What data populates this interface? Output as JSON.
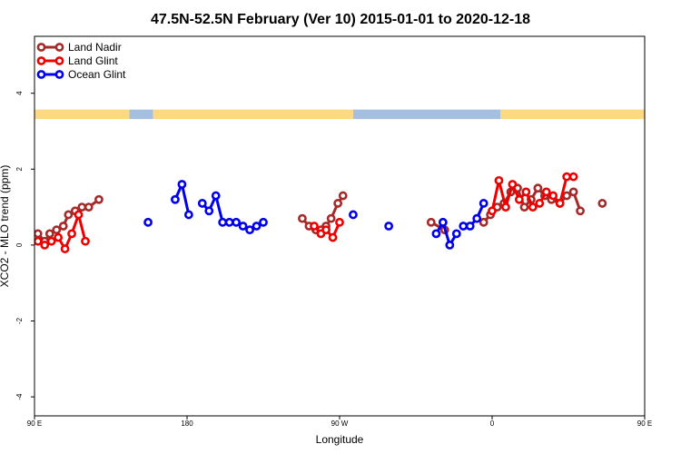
{
  "chart_data": {
    "type": "line",
    "title": "47.5N-52.5N February (Ver 10)   2015-01-01 to 2020-12-18",
    "xlabel": "Longitude",
    "ylabel": "XCO2 - MLO trend (ppm)",
    "xlim": [
      90,
      450
    ],
    "ylim": [
      -4.5,
      5.5
    ],
    "x_ticks": [
      {
        "value": 90,
        "label": "90 E"
      },
      {
        "value": 180,
        "label": "180"
      },
      {
        "value": 270,
        "label": "90 W"
      },
      {
        "value": 360,
        "label": "0"
      },
      {
        "value": 450,
        "label": "90 E"
      },
      {
        "value": 540,
        "label": "180"
      }
    ],
    "y_ticks": [
      {
        "value": -4,
        "label": "-4"
      },
      {
        "value": -2,
        "label": "-2"
      },
      {
        "value": 0,
        "label": "0"
      },
      {
        "value": 2,
        "label": "2"
      },
      {
        "value": 4,
        "label": "4"
      }
    ],
    "grid": false,
    "legend_position": "top-left",
    "land_ocean_bar": {
      "y_range": [
        3.32,
        3.57
      ],
      "land_color": "#FFD97F",
      "ocean_color": "#A5BFE0",
      "segments": [
        {
          "type": "land",
          "from": 90,
          "to": 146
        },
        {
          "type": "ocean",
          "from": 146,
          "to": 160
        },
        {
          "type": "land",
          "from": 160,
          "to": 278
        },
        {
          "type": "ocean",
          "from": 278,
          "to": 365
        },
        {
          "type": "land",
          "from": 365,
          "to": 505
        },
        {
          "type": "ocean",
          "from": 505,
          "to": 540
        }
      ]
    },
    "series": [
      {
        "name": "Land Nadir",
        "color": "#A52A2A",
        "segments": [
          [
            [
              92,
              0.3
            ],
            [
              96,
              0.1
            ],
            [
              99,
              0.3
            ],
            [
              103,
              0.4
            ],
            [
              107,
              0.5
            ],
            [
              110,
              0.8
            ],
            [
              114,
              0.9
            ],
            [
              118,
              1.0
            ],
            [
              122,
              1.0
            ],
            [
              128,
              1.2
            ]
          ],
          [
            [
              248,
              0.7
            ],
            [
              252,
              0.5
            ],
            [
              256,
              0.4
            ],
            [
              259,
              0.4
            ],
            [
              262,
              0.5
            ],
            [
              265,
              0.7
            ],
            [
              269,
              1.1
            ],
            [
              272,
              1.3
            ]
          ],
          [
            [
              324,
              0.6
            ],
            [
              332,
              0.4
            ]
          ],
          [
            [
              355,
              0.6
            ],
            [
              359,
              0.8
            ],
            [
              363,
              1.0
            ],
            [
              367,
              1.1
            ],
            [
              371,
              1.4
            ],
            [
              375,
              1.5
            ],
            [
              379,
              1.0
            ],
            [
              383,
              1.2
            ],
            [
              387,
              1.5
            ],
            [
              391,
              1.3
            ],
            [
              395,
              1.2
            ],
            [
              400,
              1.1
            ],
            [
              404,
              1.3
            ],
            [
              408,
              1.4
            ],
            [
              412,
              0.9
            ]
          ],
          [
            [
              425,
              1.1
            ]
          ]
        ]
      },
      {
        "name": "Land Glint",
        "color": "#EE0000",
        "segments": [
          [
            [
              92,
              0.1
            ],
            [
              96,
              0.0
            ],
            [
              100,
              0.1
            ],
            [
              104,
              0.2
            ],
            [
              108,
              -0.1
            ],
            [
              112,
              0.3
            ],
            [
              116,
              0.8
            ],
            [
              120,
              0.1
            ]
          ],
          [
            [
              255,
              0.5
            ],
            [
              259,
              0.3
            ],
            [
              262,
              0.4
            ],
            [
              266,
              0.2
            ],
            [
              270,
              0.6
            ]
          ],
          [
            [
              360,
              0.9
            ],
            [
              364,
              1.7
            ],
            [
              368,
              1.0
            ],
            [
              372,
              1.6
            ],
            [
              376,
              1.2
            ],
            [
              380,
              1.4
            ],
            [
              384,
              1.0
            ],
            [
              388,
              1.1
            ],
            [
              392,
              1.4
            ],
            [
              396,
              1.3
            ],
            [
              400,
              1.1
            ],
            [
              404,
              1.8
            ],
            [
              408,
              1.8
            ]
          ]
        ]
      },
      {
        "name": "Ocean Glint",
        "color": "#0000EE",
        "segments": [
          [
            [
              157,
              0.6
            ]
          ],
          [
            [
              173,
              1.2
            ],
            [
              177,
              1.6
            ],
            [
              181,
              0.8
            ]
          ],
          [
            [
              189,
              1.1
            ],
            [
              193,
              0.9
            ],
            [
              197,
              1.3
            ],
            [
              201,
              0.6
            ],
            [
              205,
              0.6
            ],
            [
              209,
              0.6
            ],
            [
              213,
              0.5
            ],
            [
              217,
              0.4
            ],
            [
              221,
              0.5
            ],
            [
              225,
              0.6
            ]
          ],
          [
            [
              278,
              0.8
            ]
          ],
          [
            [
              299,
              0.5
            ]
          ],
          [
            [
              327,
              0.3
            ],
            [
              331,
              0.6
            ],
            [
              335,
              0.0
            ],
            [
              339,
              0.3
            ]
          ],
          [
            [
              343,
              0.5
            ],
            [
              347,
              0.5
            ],
            [
              351,
              0.7
            ],
            [
              355,
              1.1
            ]
          ]
        ]
      }
    ]
  }
}
